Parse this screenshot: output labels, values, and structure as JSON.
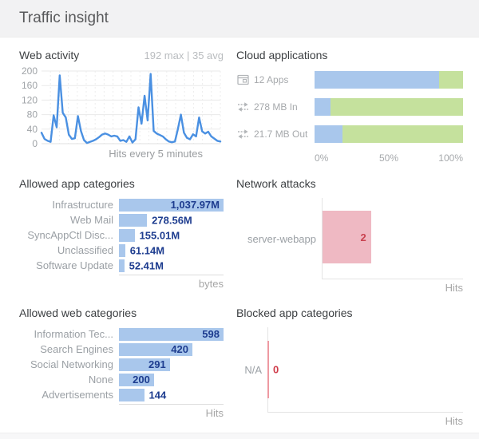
{
  "page": {
    "title": "Traffic insight"
  },
  "panels": {
    "web_activity": {
      "title": "Web activity",
      "subtitle": "192 max | 35 avg",
      "xlabel": "Hits every 5 minutes"
    },
    "cloud_applications": {
      "title": "Cloud applications"
    },
    "allowed_app_categories": {
      "title": "Allowed app categories",
      "footer": "bytes"
    },
    "network_attacks": {
      "title": "Network attacks",
      "footer": "Hits"
    },
    "allowed_web_categories": {
      "title": "Allowed web categories",
      "footer": "Hits"
    },
    "blocked_app_categories": {
      "title": "Blocked app categories",
      "footer": "Hits"
    }
  },
  "colors": {
    "line_blue": "#4a90e2",
    "bar_blue": "#a9c7ec",
    "bar_green": "#c5e19d",
    "value_navy": "#1d3c8f",
    "bar_pink": "#efb9c3",
    "value_red": "#c9414f",
    "zero_red": "#ee99a2",
    "muted_text": "#9ba0a5",
    "header_bg": "#f2f2f3"
  },
  "chart_data": [
    {
      "id": "web-activity",
      "type": "line",
      "title": "Web activity",
      "subtitle": "192 max | 35 avg",
      "xlabel": "Hits every 5 minutes",
      "ylabel": "",
      "ylim": [
        0,
        200
      ],
      "yticks": [
        0,
        40,
        80,
        120,
        160,
        200
      ],
      "grid": true,
      "max": 192,
      "avg": 35,
      "series": [
        {
          "name": "hits",
          "values": [
            30,
            13,
            8,
            5,
            78,
            45,
            188,
            85,
            72,
            25,
            13,
            15,
            76,
            35,
            10,
            2,
            5,
            8,
            12,
            18,
            25,
            28,
            25,
            20,
            22,
            20,
            8,
            10,
            5,
            20,
            3,
            12,
            100,
            55,
            132,
            64,
            192,
            35,
            28,
            24,
            20,
            12,
            6,
            4,
            6,
            40,
            80,
            30,
            16,
            12,
            26,
            20,
            72,
            34,
            28,
            33,
            20,
            14,
            8,
            6
          ]
        }
      ]
    },
    {
      "id": "cloud-applications",
      "type": "stacked-bar",
      "title": "Cloud applications",
      "categories": [
        "12 Apps",
        "278 MB In",
        "21.7 MB Out"
      ],
      "icons": [
        "apps-window-icon",
        "transfer-arrows-icon",
        "transfer-arrows-icon"
      ],
      "x_ticks": [
        "0%",
        "50%",
        "100%"
      ],
      "xlim": [
        0,
        100
      ],
      "series": [
        {
          "name": "blue",
          "color": "#a9c7ec",
          "values": [
            84,
            11,
            19
          ]
        },
        {
          "name": "green",
          "color": "#c5e19d",
          "values": [
            16,
            89,
            81
          ]
        }
      ]
    },
    {
      "id": "allowed-app-categories",
      "type": "bar",
      "title": "Allowed app categories",
      "categories": [
        "Infrastructure",
        "Web Mail",
        "SyncAppCtl Disc...",
        "Unclassified",
        "Software Update"
      ],
      "values": [
        1037.97,
        278.56,
        155.01,
        61.14,
        52.41
      ],
      "value_labels": [
        "1,037.97M",
        "278.56M",
        "155.01M",
        "61.14M",
        "52.41M"
      ],
      "unit": "bytes",
      "bar_color": "#a9c7ec",
      "value_color": "#1d3c8f"
    },
    {
      "id": "network-attacks",
      "type": "bar",
      "title": "Network attacks",
      "categories": [
        "server-webapp"
      ],
      "values": [
        2
      ],
      "value_labels": [
        "2"
      ],
      "unit": "Hits",
      "bar_color": "#efb9c3",
      "value_color": "#c9414f"
    },
    {
      "id": "allowed-web-categories",
      "type": "bar",
      "title": "Allowed web categories",
      "categories": [
        "Information Tec...",
        "Search Engines",
        "Social Networking",
        "None",
        "Advertisements"
      ],
      "values": [
        598,
        420,
        291,
        200,
        144
      ],
      "value_labels": [
        "598",
        "420",
        "291",
        "200",
        "144"
      ],
      "unit": "Hits",
      "bar_color": "#a9c7ec",
      "value_color": "#1d3c8f"
    },
    {
      "id": "blocked-app-categories",
      "type": "bar",
      "title": "Blocked app categories",
      "categories": [
        "N/A"
      ],
      "values": [
        0
      ],
      "value_labels": [
        "0"
      ],
      "unit": "Hits",
      "bar_color": "#ee99a2",
      "value_color": "#cf3a48"
    }
  ]
}
